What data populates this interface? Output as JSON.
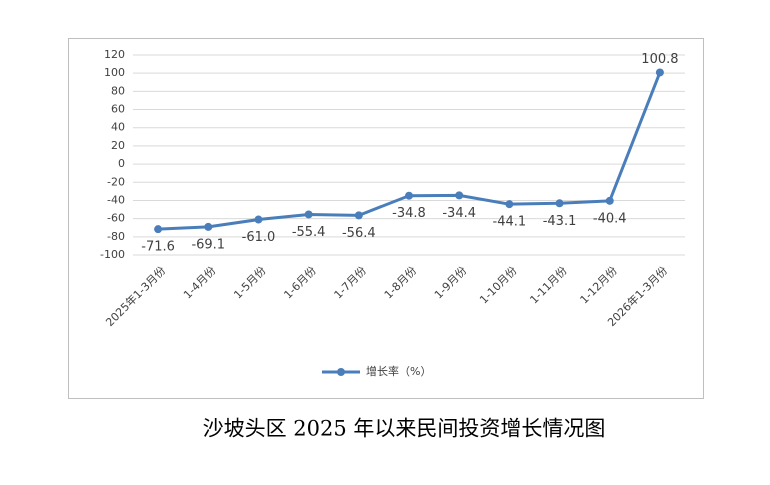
{
  "chart_data": {
    "type": "line",
    "title": "沙坡头区 2025 年以来民间投资增长情况图",
    "categories": [
      "2025年1-3月份",
      "1-4月份",
      "1-5月份",
      "1-6月份",
      "1-7月份",
      "1-8月份",
      "1-9月份",
      "1-10月份",
      "1-11月份",
      "1-12月份",
      "2026年1-3月份"
    ],
    "series": [
      {
        "name": "增长率（%）",
        "color": "#4a7ebb",
        "values": [
          -71.6,
          -69.1,
          -61.0,
          -55.4,
          -56.4,
          -34.8,
          -34.4,
          -44.1,
          -43.1,
          -40.4,
          100.8
        ],
        "value_labels": [
          "-71.6",
          "-69.1",
          "-61.0",
          "-55.4",
          "-56.4",
          "-34.8",
          "-34.4",
          "-44.1",
          "-43.1",
          "-40.4",
          "100.8"
        ]
      }
    ],
    "ylim": [
      -100,
      120
    ],
    "yticks": [
      -100,
      -80,
      -60,
      -40,
      -20,
      0,
      20,
      40,
      60,
      80,
      100,
      120
    ],
    "grid": true,
    "legend": "bottom"
  }
}
